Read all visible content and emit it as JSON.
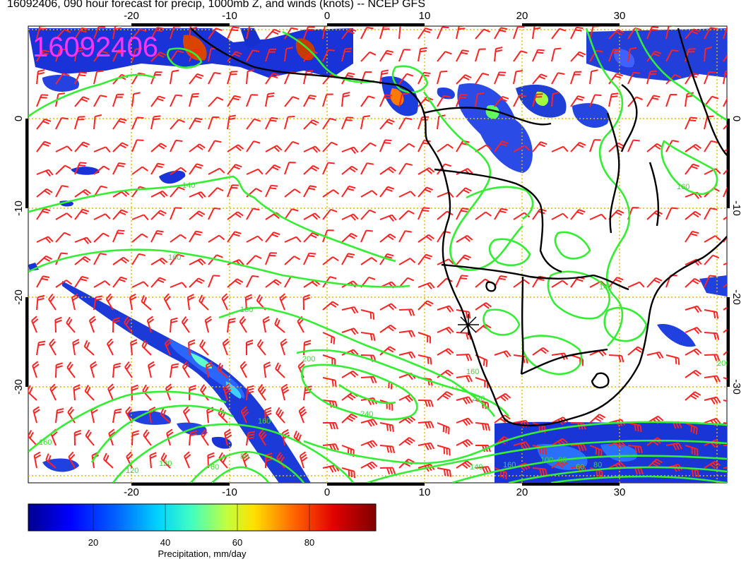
{
  "header": {
    "title": "16092406, 090 hour forecast for precip, 1000mb Z, and winds (knots) -- NCEP GFS"
  },
  "map": {
    "stamp": "16092406",
    "lon_ticks": [
      "-20",
      "-10",
      "0",
      "10",
      "20",
      "30"
    ],
    "lat_ticks": [
      "0",
      "-10",
      "-20",
      "-30"
    ],
    "contour_labels": [
      "140",
      "160",
      "160",
      "160",
      "200",
      "200",
      "220",
      "240",
      "160",
      "140",
      "120",
      "160",
      "140",
      "160",
      "60",
      "80",
      "80",
      "100",
      "120",
      "60",
      "80",
      "160"
    ],
    "colors": {
      "barbs": "#ff2222",
      "contours": "#33ee33",
      "grid": "#e6b800",
      "coast": "#000000",
      "stamp": "#ff33ff"
    }
  },
  "colorbar": {
    "ticks": [
      "20",
      "40",
      "60",
      "80"
    ],
    "label": "Precipitation, mm/day"
  }
}
